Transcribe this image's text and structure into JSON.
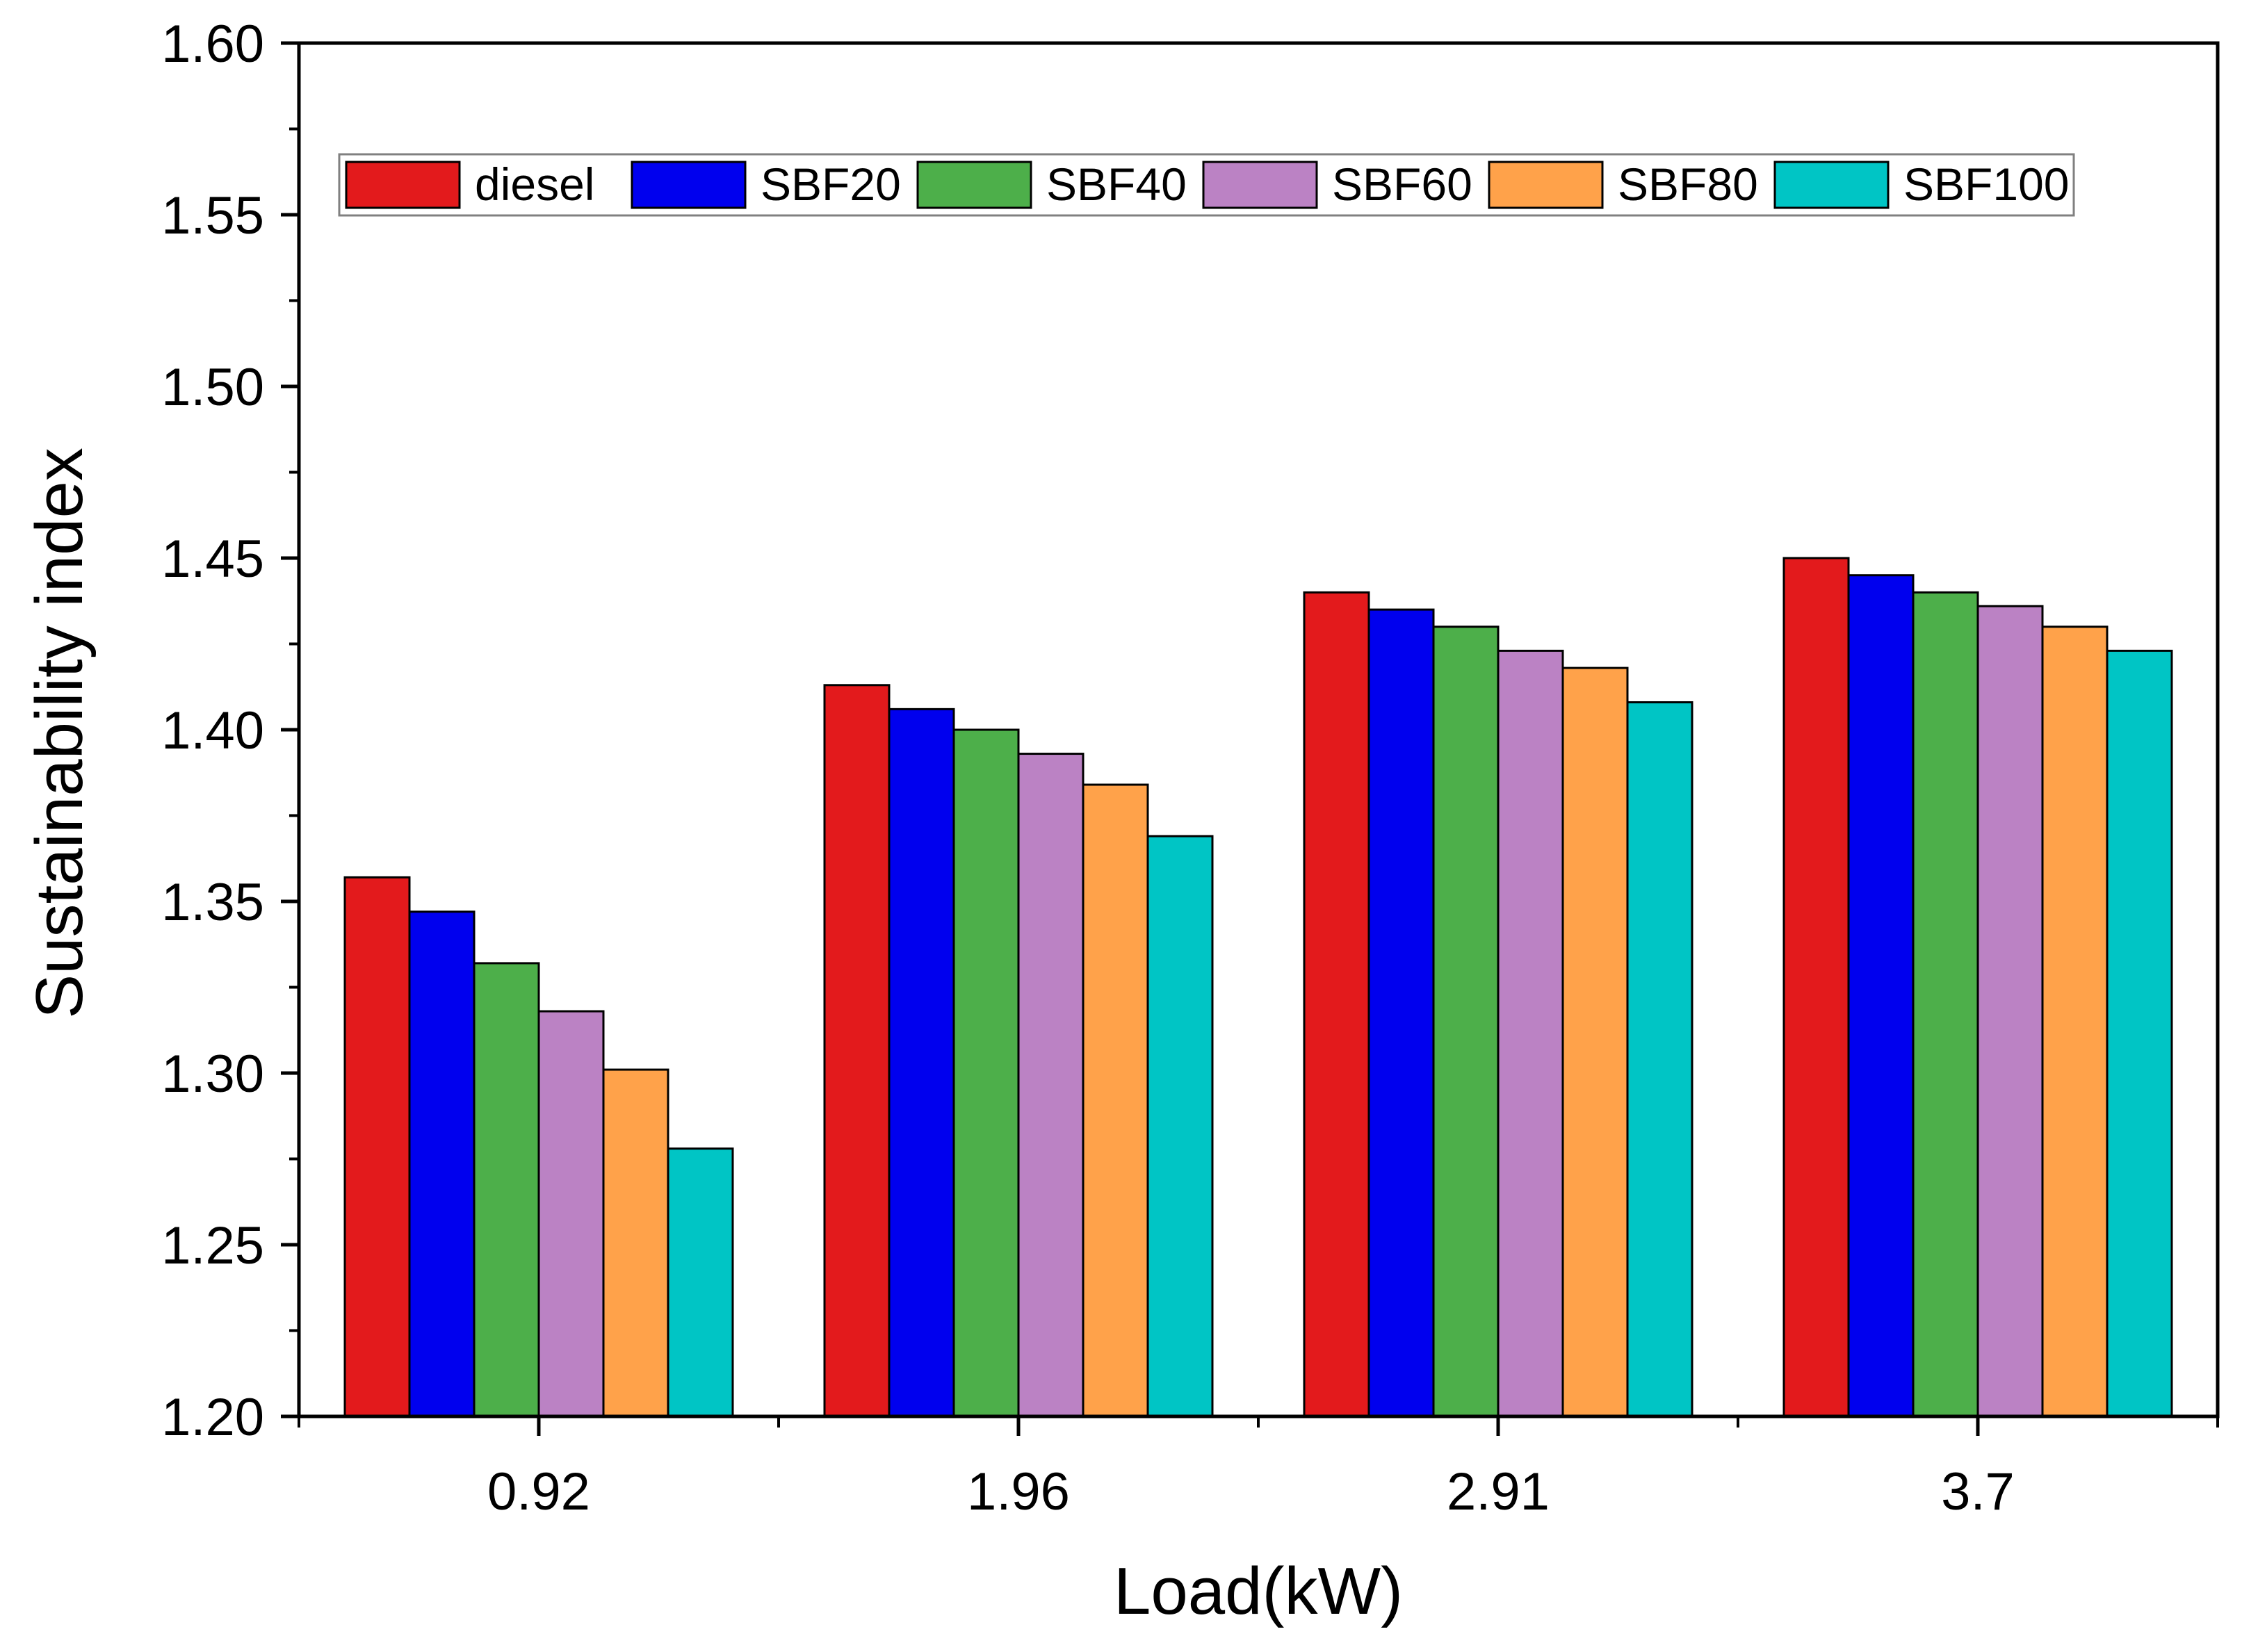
{
  "chart_data": {
    "type": "bar",
    "title": "",
    "xlabel": "Load(kW)",
    "ylabel": "Sustainability index",
    "categories": [
      "0.92",
      "1.96",
      "2.91",
      "3.7"
    ],
    "ylim": [
      1.2,
      1.6
    ],
    "yticks": [
      "1.20",
      "1.25",
      "1.30",
      "1.35",
      "1.40",
      "1.45",
      "1.50",
      "1.55",
      "1.60"
    ],
    "grid": false,
    "legend_position": "top",
    "series": [
      {
        "name": "diesel",
        "color": "#e31a1c",
        "values": [
          1.357,
          1.413,
          1.44,
          1.45
        ]
      },
      {
        "name": "SBF20",
        "color": "#0000ee",
        "values": [
          1.347,
          1.406,
          1.435,
          1.445
        ]
      },
      {
        "name": "SBF40",
        "color": "#4daf4a",
        "values": [
          1.332,
          1.4,
          1.43,
          1.44
        ]
      },
      {
        "name": "SBF60",
        "color": "#bb82c4",
        "values": [
          1.318,
          1.393,
          1.423,
          1.436
        ]
      },
      {
        "name": "SBF80",
        "color": "#ffa24a",
        "values": [
          1.301,
          1.384,
          1.418,
          1.43
        ]
      },
      {
        "name": "SBF100",
        "color": "#00c5c5",
        "values": [
          1.278,
          1.369,
          1.408,
          1.423
        ]
      }
    ]
  }
}
